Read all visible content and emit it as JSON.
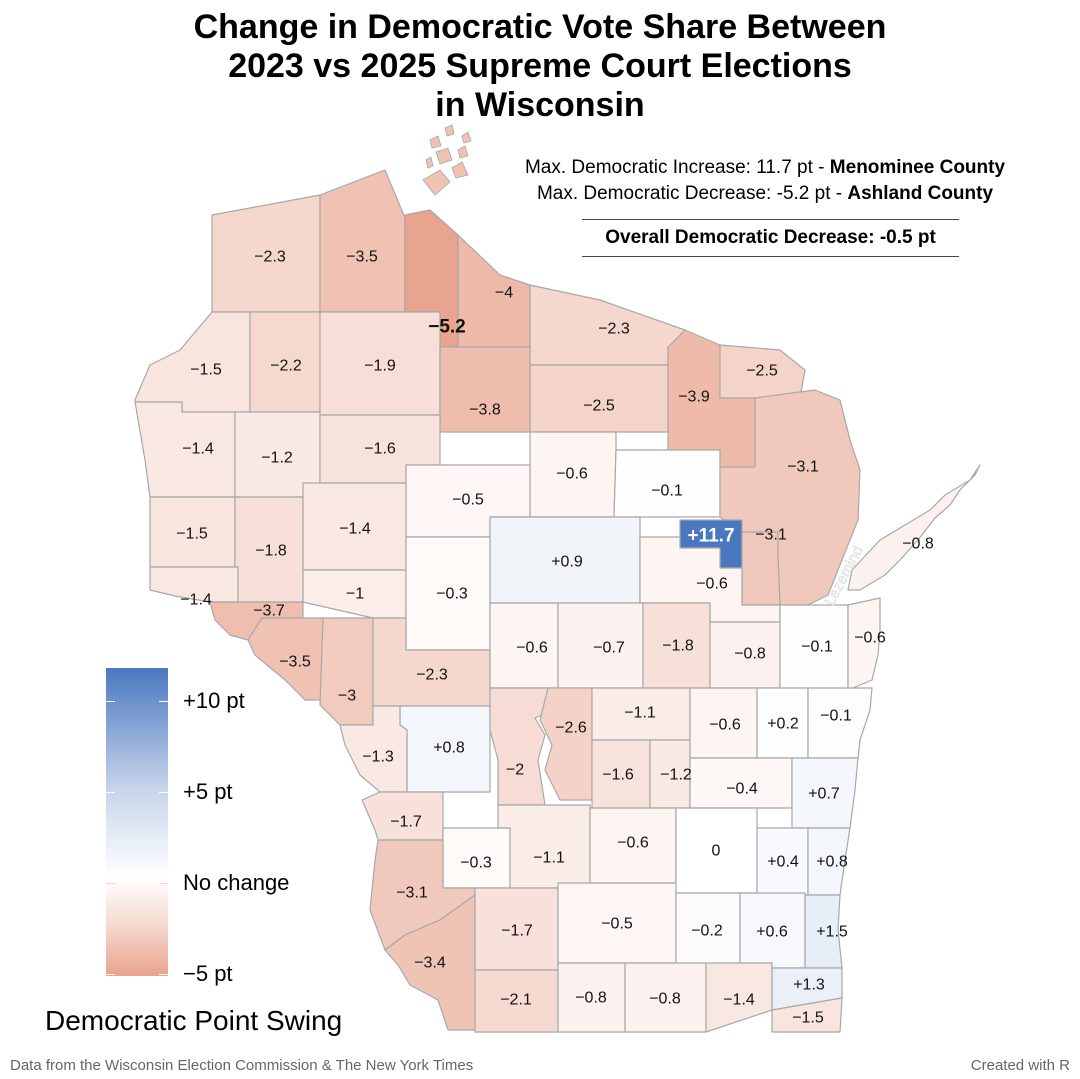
{
  "title": {
    "lines": [
      "Change in Democratic Vote Share Between",
      "2023 vs 2025 Supreme Court Elections",
      "in Wisconsin"
    ]
  },
  "stats": {
    "increase_prefix": "Max. Democratic Increase: 11.7 pt - ",
    "increase_county": "Menominee County",
    "decrease_prefix": "Max. Democratic Decrease: -5.2 pt - ",
    "decrease_county": "Ashland County",
    "overall": "Overall Democratic Decrease: -0.5 pt"
  },
  "legend": {
    "title": "Democratic Point Swing",
    "labels": [
      "+10 pt",
      "+5 pt",
      "No change",
      "−5 pt"
    ],
    "colors": {
      "max_increase": "#4a78c0",
      "no_change": "#ffffff",
      "max_decrease": "#e8a48e"
    }
  },
  "watermark": "Lezemind",
  "footer": {
    "source": "Data from the Wisconsin Election Commission & The New York Times",
    "credit": "Created with R"
  },
  "map": {
    "counties": [
      {
        "label": "−2.3",
        "value": -2.3
      },
      {
        "label": "−3.5",
        "value": -3.5
      },
      {
        "label": "−5.2",
        "value": -5.2,
        "emphasis": true
      },
      {
        "label": "−4",
        "value": -4
      },
      {
        "label": "−2.3",
        "value": -2.3
      },
      {
        "label": "−1.5",
        "value": -1.5
      },
      {
        "label": "−2.2",
        "value": -2.2
      },
      {
        "label": "−1.9",
        "value": -1.9
      },
      {
        "label": "−3.8",
        "value": -3.8
      },
      {
        "label": "−2.5",
        "value": -2.5
      },
      {
        "label": "−3.9",
        "value": -3.9
      },
      {
        "label": "−2.5",
        "value": -2.5
      },
      {
        "label": "−1.4",
        "value": -1.4
      },
      {
        "label": "−1.2",
        "value": -1.2
      },
      {
        "label": "−1.6",
        "value": -1.6
      },
      {
        "label": "−0.6",
        "value": -0.6
      },
      {
        "label": "−0.1",
        "value": -0.1
      },
      {
        "label": "−3.1",
        "value": -3.1
      },
      {
        "label": "−0.5",
        "value": -0.5
      },
      {
        "label": "−1.5",
        "value": -1.5
      },
      {
        "label": "−1.8",
        "value": -1.8
      },
      {
        "label": "−1.4",
        "value": -1.4
      },
      {
        "label": "+0.9",
        "value": 0.9
      },
      {
        "label": "+11.7",
        "value": 11.7,
        "emphasis": true
      },
      {
        "label": "−3.1",
        "value": -3.1
      },
      {
        "label": "−0.8",
        "value": -0.8
      },
      {
        "label": "−1.4",
        "value": -1.4
      },
      {
        "label": "−1",
        "value": -1
      },
      {
        "label": "−0.3",
        "value": -0.3
      },
      {
        "label": "−0.6",
        "value": -0.6
      },
      {
        "label": "−3.7",
        "value": -3.7
      },
      {
        "label": "−3.5",
        "value": -3.5
      },
      {
        "label": "−3",
        "value": -3
      },
      {
        "label": "−2.3",
        "value": -2.3
      },
      {
        "label": "−0.6",
        "value": -0.6
      },
      {
        "label": "−0.7",
        "value": -0.7
      },
      {
        "label": "−1.8",
        "value": -1.8
      },
      {
        "label": "−0.8",
        "value": -0.8
      },
      {
        "label": "−0.1",
        "value": -0.1
      },
      {
        "label": "−0.6",
        "value": -0.6
      },
      {
        "label": "+0.8",
        "value": 0.8
      },
      {
        "label": "−1.3",
        "value": -1.3
      },
      {
        "label": "−2",
        "value": -2
      },
      {
        "label": "−2.6",
        "value": -2.6
      },
      {
        "label": "−1.1",
        "value": -1.1
      },
      {
        "label": "−1.6",
        "value": -1.6
      },
      {
        "label": "−1.2",
        "value": -1.2
      },
      {
        "label": "−0.6",
        "value": -0.6
      },
      {
        "label": "+0.2",
        "value": 0.2
      },
      {
        "label": "−0.1",
        "value": -0.1
      },
      {
        "label": "−0.4",
        "value": -0.4
      },
      {
        "label": "+0.7",
        "value": 0.7
      },
      {
        "label": "−1.7",
        "value": -1.7
      },
      {
        "label": "−0.3",
        "value": -0.3
      },
      {
        "label": "−1.1",
        "value": -1.1
      },
      {
        "label": "−0.6",
        "value": -0.6
      },
      {
        "label": "0",
        "value": 0
      },
      {
        "label": "+0.4",
        "value": 0.4
      },
      {
        "label": "+0.8",
        "value": 0.8
      },
      {
        "label": "−3.1",
        "value": -3.1
      },
      {
        "label": "−3.4",
        "value": -3.4
      },
      {
        "label": "−1.7",
        "value": -1.7
      },
      {
        "label": "−0.5",
        "value": -0.5
      },
      {
        "label": "−0.2",
        "value": -0.2
      },
      {
        "label": "+0.6",
        "value": 0.6
      },
      {
        "label": "+1.5",
        "value": 1.5
      },
      {
        "label": "−2.1",
        "value": -2.1
      },
      {
        "label": "−0.8",
        "value": -0.8
      },
      {
        "label": "−0.8",
        "value": -0.8
      },
      {
        "label": "−1.4",
        "value": -1.4
      },
      {
        "label": "+1.3",
        "value": 1.3
      },
      {
        "label": "−1.5",
        "value": -1.5
      }
    ]
  }
}
